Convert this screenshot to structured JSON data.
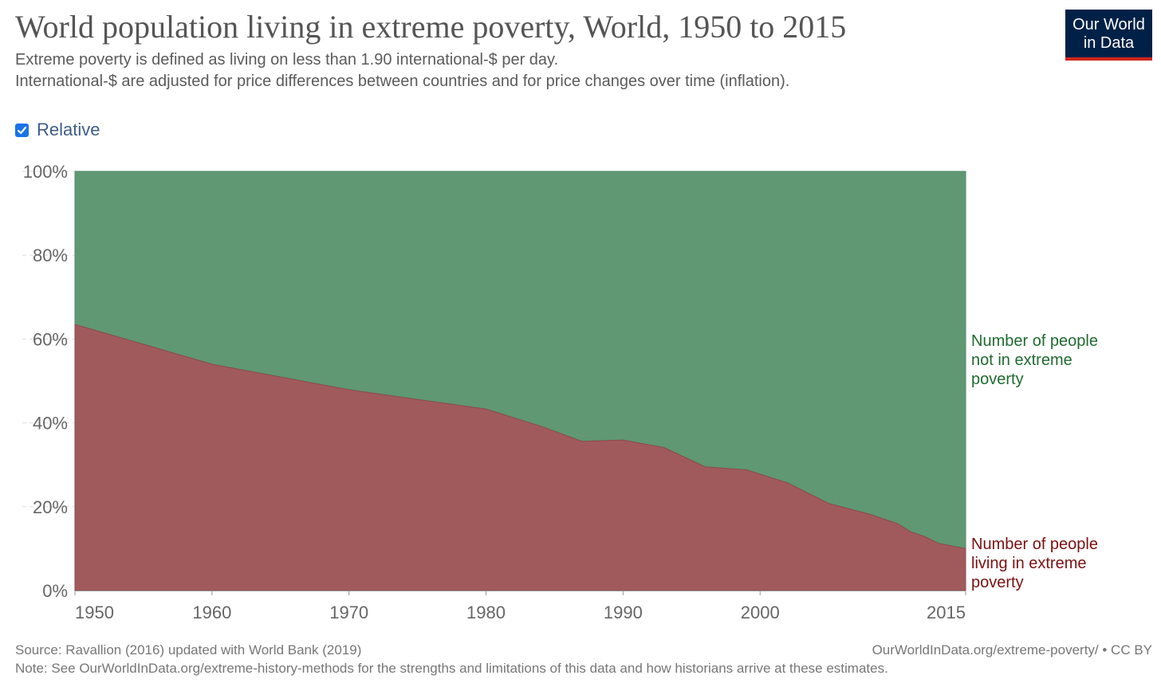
{
  "header": {
    "title": "World population living in extreme poverty, World, 1950 to 2015",
    "subtitle_1": "Extreme poverty is defined as living on less than 1.90 international-$ per day.",
    "subtitle_2": "International-$ are adjusted for price differences between countries and for price changes over time (inflation).",
    "logo_line_1": "Our World",
    "logo_line_2": "in Data"
  },
  "controls": {
    "relative_label": "Relative",
    "relative_checked": true
  },
  "footer": {
    "source": "Source: Ravallion (2016) updated with World Bank (2019)",
    "note": "Note: See OurWorldInData.org/extreme-history-methods for the strengths and limitations of this data and how historians arrive at these estimates.",
    "url": "OurWorldInData.org/extreme-poverty/ • CC BY"
  },
  "colors": {
    "poverty": "#a05a5c",
    "not_poverty": "#5f9873",
    "poverty_label": "#7a1010",
    "not_poverty_label": "#1f6b2f"
  },
  "chart_data": {
    "type": "area",
    "stacked": "relative",
    "title": "World population living in extreme poverty, World, 1950 to 2015",
    "x_ticks": [
      "1950",
      "1960",
      "1970",
      "1980",
      "1990",
      "2000",
      "2015"
    ],
    "y_ticks": [
      "0%",
      "20%",
      "40%",
      "60%",
      "80%",
      "100%"
    ],
    "xlim": [
      1950,
      2015
    ],
    "ylim": [
      0,
      100
    ],
    "x": [
      1950,
      1960,
      1970,
      1980,
      1984,
      1987,
      1990,
      1993,
      1996,
      1999,
      2002,
      2005,
      2008,
      2010,
      2011,
      2012,
      2013,
      2015
    ],
    "series": [
      {
        "name": "Number of people living in extreme poverty",
        "label_lines": [
          "Number of people",
          "living in extreme",
          "poverty"
        ],
        "values": [
          63.5,
          54.0,
          47.9,
          43.3,
          39.2,
          35.6,
          35.9,
          34.1,
          29.5,
          28.8,
          25.7,
          20.8,
          18.2,
          16.0,
          14.0,
          12.9,
          11.3,
          10.0
        ]
      },
      {
        "name": "Number of people not in extreme poverty",
        "label_lines": [
          "Number of people",
          "not in extreme",
          "poverty"
        ],
        "values": [
          36.5,
          46.0,
          52.1,
          56.7,
          60.8,
          64.4,
          64.1,
          65.9,
          70.5,
          71.2,
          74.3,
          79.2,
          81.8,
          84.0,
          86.0,
          87.1,
          88.7,
          90.0
        ]
      }
    ]
  }
}
